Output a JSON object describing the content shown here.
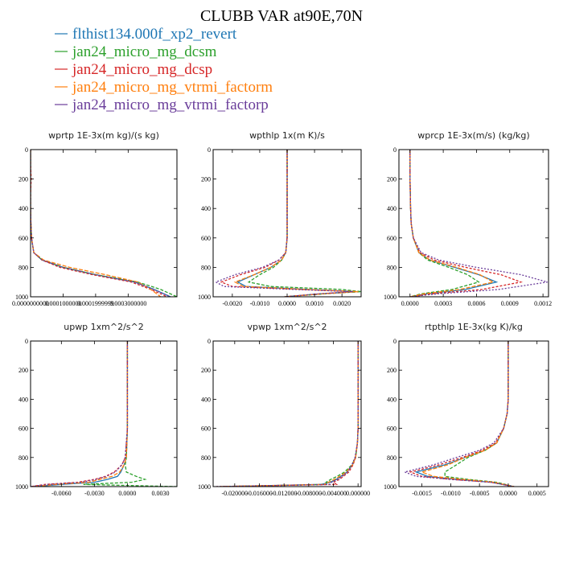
{
  "title": "CLUBB VAR at90E,70N",
  "legend": [
    {
      "label": "flthist134.000f_xp2_revert",
      "color": "#1f77b4"
    },
    {
      "label": "jan24_micro_mg_dcsm",
      "color": "#2ca02c"
    },
    {
      "label": "jan24_micro_mg_dcsp",
      "color": "#d62728"
    },
    {
      "label": "jan24_micro_mg_vtrmi_factorm",
      "color": "#ff7f0e"
    },
    {
      "label": "jan24_micro_mg_vtrmi_factorp",
      "color": "#6a3d9a"
    }
  ],
  "chart_data": [
    {
      "type": "line",
      "title": "wprtp  1E-3x(m kg)/(s kg)",
      "xlim": [
        0,
        0.00045
      ],
      "ylim": [
        1000,
        0
      ],
      "grid": false,
      "xticks": [
        0,
        0.0001,
        0.0002,
        0.0003
      ],
      "xticklabels": [
        "0.0000000000",
        "0.0001000000",
        "0.0001999999",
        "0.0003000000"
      ],
      "yticks": [
        0,
        200,
        400,
        600,
        800,
        1000
      ],
      "y": [
        0,
        100,
        200,
        300,
        400,
        500,
        600,
        700,
        750,
        800,
        850,
        900,
        950,
        1000
      ],
      "series": [
        {
          "values": [
            0,
            0,
            0,
            0,
            0,
            1e-06,
            3e-06,
            1e-05,
            3.5e-05,
            0.0001,
            0.0002,
            0.00032,
            0.00038,
            0.00043
          ]
        },
        {
          "values": [
            0,
            0,
            0,
            0,
            0,
            1e-06,
            3e-06,
            1e-05,
            3.5e-05,
            0.0001,
            0.0002,
            0.00033,
            0.0004,
            0.00045
          ]
        },
        {
          "values": [
            0,
            0,
            2e-06,
            0,
            0,
            1e-06,
            3e-06,
            1e-05,
            3.5e-05,
            9e-05,
            0.00019,
            0.00031,
            0.00037,
            0.00042
          ]
        },
        {
          "values": [
            0,
            0,
            0,
            0,
            0,
            1e-06,
            3e-06,
            1e-05,
            4e-05,
            0.00012,
            0.00023,
            0.00033,
            0.00037,
            0.0004
          ]
        },
        {
          "values": [
            0,
            0,
            0,
            0,
            0,
            1e-06,
            3e-06,
            1e-05,
            3.5e-05,
            0.0001,
            0.0002,
            0.00032,
            0.00038,
            0.00043
          ]
        }
      ]
    },
    {
      "type": "line",
      "title": "wpthlp  1x(m K)/s",
      "xlim": [
        -0.0027,
        0.0027
      ],
      "ylim": [
        1000,
        0
      ],
      "grid": false,
      "xticks": [
        -0.002,
        -0.001,
        0,
        0.001,
        0.002
      ],
      "xticklabels": [
        "-0.0020",
        "-0.0010",
        "0.0000",
        "0.0010",
        "0.0020"
      ],
      "yticks": [
        0,
        200,
        400,
        600,
        800,
        1000
      ],
      "y": [
        0,
        200,
        400,
        600,
        700,
        750,
        800,
        850,
        900,
        930,
        950,
        965,
        980,
        1000
      ],
      "series": [
        {
          "values": [
            0,
            0,
            0,
            0,
            -5e-05,
            -0.0002,
            -0.0006,
            -0.0012,
            -0.0018,
            -0.0015,
            0.0008,
            0.0025,
            0.0012,
            -0.0001
          ]
        },
        {
          "values": [
            0,
            0,
            0,
            0,
            -5e-05,
            -0.0002,
            -0.0005,
            -0.001,
            -0.0014,
            -0.0006,
            0.002,
            0.0027,
            0.0014,
            -0.0001
          ]
        },
        {
          "values": [
            0,
            0,
            0,
            0,
            -5e-05,
            -0.0003,
            -0.0008,
            -0.0017,
            -0.0024,
            -0.002,
            0.0005,
            0.0025,
            0.0012,
            -0.0001
          ]
        },
        {
          "values": [
            0,
            0,
            0,
            0,
            -5e-05,
            -0.0002,
            -0.0006,
            -0.0012,
            -0.0019,
            -0.0016,
            0.0007,
            0.0026,
            0.0013,
            -0.0001
          ]
        },
        {
          "values": [
            0,
            0,
            0,
            0,
            -5e-05,
            -0.0003,
            -0.0009,
            -0.0019,
            -0.0026,
            -0.0023,
            0.0003,
            0.0024,
            0.0012,
            -0.0001
          ]
        }
      ]
    },
    {
      "type": "line",
      "title": "wprcp  1E-3x(m/s) (kg/kg)",
      "xlim": [
        -0.0001,
        0.00125
      ],
      "ylim": [
        1000,
        0
      ],
      "grid": false,
      "xticks": [
        0,
        0.0003,
        0.0006,
        0.0009,
        0.0012
      ],
      "xticklabels": [
        "0.0000",
        "0.0003",
        "0.0006",
        "0.0009",
        "0.0012"
      ],
      "yticks": [
        0,
        200,
        400,
        600,
        800,
        1000
      ],
      "y": [
        0,
        200,
        400,
        500,
        600,
        700,
        750,
        800,
        850,
        900,
        950,
        980,
        1000
      ],
      "series": [
        {
          "values": [
            0,
            0,
            5e-06,
            1e-05,
            3e-05,
            8e-05,
            0.00018,
            0.0004,
            0.00062,
            0.00078,
            0.0005,
            0.00015,
            0
          ]
        },
        {
          "values": [
            0,
            0,
            5e-06,
            1e-05,
            3e-05,
            8e-05,
            0.00016,
            0.00035,
            0.00052,
            0.00062,
            0.00038,
            0.0001,
            0
          ]
        },
        {
          "values": [
            0,
            0,
            5e-06,
            1e-05,
            3e-05,
            9e-05,
            0.00022,
            0.0005,
            0.00082,
            0.001,
            0.00065,
            0.0002,
            0
          ]
        },
        {
          "values": [
            0,
            0,
            5e-06,
            1e-05,
            3e-05,
            8e-05,
            0.00018,
            0.00042,
            0.00063,
            0.00075,
            0.00045,
            0.00013,
            0
          ]
        },
        {
          "values": [
            0,
            0,
            5e-06,
            1e-05,
            3e-05,
            0.0001,
            0.00026,
            0.0006,
            0.001,
            0.00124,
            0.0008,
            0.00025,
            0
          ]
        }
      ]
    },
    {
      "type": "line",
      "title": "upwp  1xm^2/s^2",
      "xlim": [
        -0.0088,
        0.0045
      ],
      "ylim": [
        1000,
        0
      ],
      "grid": false,
      "xticks": [
        -0.006,
        -0.003,
        0,
        0.003
      ],
      "xticklabels": [
        "-0.0060",
        "-0.0030",
        "0.0000",
        "0.0030"
      ],
      "yticks": [
        0,
        200,
        400,
        600,
        800,
        1000
      ],
      "y": [
        0,
        200,
        400,
        600,
        800,
        850,
        900,
        930,
        950,
        970,
        985,
        1000
      ],
      "series": [
        {
          "values": [
            0,
            0,
            0,
            0,
            -0.0001,
            -0.0003,
            -0.0006,
            -0.0009,
            -0.0018,
            -0.003,
            -0.006,
            -0.0085
          ]
        },
        {
          "values": [
            0,
            0,
            0,
            0,
            -0.0001,
            -0.0002,
            -0.0001,
            0.0008,
            0.0016,
            0.0004,
            -0.004,
            0.0045
          ]
        },
        {
          "values": [
            0,
            0,
            0,
            0,
            -0.0002,
            -0.0005,
            -0.0012,
            -0.002,
            -0.003,
            -0.0045,
            -0.0075,
            -0.0088
          ]
        },
        {
          "values": [
            0,
            0,
            0,
            0,
            -0.0001,
            -0.0003,
            -0.0007,
            -0.0014,
            -0.0025,
            -0.0035,
            -0.0065,
            -0.0086
          ]
        },
        {
          "values": [
            0,
            0,
            0,
            0,
            -0.0002,
            -0.0005,
            -0.0011,
            -0.0019,
            -0.0028,
            -0.0042,
            -0.0072,
            -0.0088
          ]
        }
      ]
    },
    {
      "type": "line",
      "title": "vpwp  1xm^2/s^2",
      "xlim": [
        -0.0235,
        0.0005
      ],
      "ylim": [
        1000,
        0
      ],
      "grid": false,
      "xticks": [
        -0.02,
        -0.016,
        -0.012,
        -0.008,
        -0.004,
        0
      ],
      "xticklabels": [
        "-0.020000",
        "-0.016000",
        "-0.012000",
        "-0.008000",
        "-0.004000",
        "0.000000"
      ],
      "yticks": [
        0,
        200,
        400,
        600,
        800,
        1000
      ],
      "y": [
        0,
        200,
        400,
        600,
        700,
        800,
        850,
        900,
        930,
        950,
        970,
        985,
        1000
      ],
      "series": [
        {
          "values": [
            0,
            0,
            0,
            0,
            -0.0001,
            -0.0004,
            -0.0009,
            -0.0018,
            -0.0028,
            -0.0035,
            -0.0045,
            -0.006,
            -0.022
          ]
        },
        {
          "values": [
            0,
            0,
            0,
            0,
            -0.0001,
            -0.0004,
            -0.001,
            -0.0022,
            -0.0034,
            -0.0044,
            -0.0052,
            -0.005,
            -0.022
          ]
        },
        {
          "values": [
            0,
            0,
            0,
            0,
            -0.0001,
            -0.0004,
            -0.0008,
            -0.0015,
            -0.0024,
            -0.003,
            -0.004,
            -0.0035,
            -0.023
          ]
        },
        {
          "values": [
            0,
            0,
            0,
            0,
            -0.0001,
            -0.0004,
            -0.0009,
            -0.0019,
            -0.003,
            -0.0038,
            -0.0048,
            -0.0055,
            -0.0225
          ]
        },
        {
          "values": [
            0,
            0,
            0,
            0,
            -0.0001,
            -0.0005,
            -0.001,
            -0.0017,
            -0.0026,
            -0.0033,
            -0.0043,
            -0.0045,
            -0.023
          ]
        }
      ]
    },
    {
      "type": "line",
      "title": "rtpthlp  1E-3x(kg K)/kg",
      "xlim": [
        -0.0019,
        0.0007
      ],
      "ylim": [
        1000,
        0
      ],
      "grid": false,
      "xticks": [
        -0.0015,
        -0.001,
        -0.0005,
        0,
        0.0005
      ],
      "xticklabels": [
        "-0.0015",
        "-0.0010",
        "-0.0005",
        "0.0000",
        "0.0005"
      ],
      "yticks": [
        0,
        200,
        400,
        600,
        800,
        1000
      ],
      "y": [
        0,
        200,
        400,
        500,
        600,
        700,
        750,
        800,
        850,
        900,
        930,
        950,
        970,
        1000
      ],
      "series": [
        {
          "values": [
            0,
            0,
            0,
            -2e-05,
            -8e-05,
            -0.0002,
            -0.0004,
            -0.00075,
            -0.0011,
            -0.0016,
            -0.0014,
            -0.0009,
            -0.0003,
            0.0001
          ]
        },
        {
          "values": [
            0,
            0,
            0,
            -2e-05,
            -8e-05,
            -0.0002,
            -0.0004,
            -0.0007,
            -0.0009,
            -0.0011,
            -0.0011,
            -0.0007,
            -0.0002,
            0.0001
          ]
        },
        {
          "values": [
            0,
            0,
            0,
            -2e-05,
            -8e-05,
            -0.00022,
            -0.00045,
            -0.0008,
            -0.0012,
            -0.0017,
            -0.0015,
            -0.001,
            -0.0003,
            0.0001
          ]
        },
        {
          "values": [
            0,
            0,
            0,
            -2e-05,
            -8e-05,
            -0.0002,
            -0.0004,
            -0.00075,
            -0.00105,
            -0.0015,
            -0.0013,
            -0.0008,
            -0.00025,
            0.0001
          ]
        },
        {
          "values": [
            0,
            0,
            0,
            -2e-05,
            -8e-05,
            -0.00025,
            -0.0005,
            -0.0009,
            -0.0013,
            -0.0018,
            -0.0016,
            -0.001,
            -0.0003,
            0.0001
          ]
        }
      ]
    }
  ]
}
